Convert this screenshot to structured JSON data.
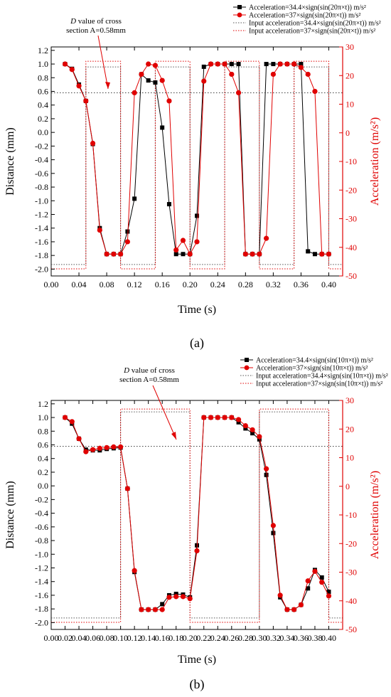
{
  "colors": {
    "black": "#000000",
    "red": "#e00000",
    "dotted": "#555555"
  },
  "chart_data": [
    {
      "type": "line",
      "panel_label": "(a)",
      "xlabel": "Time (s)",
      "ylabel": "Distance (mm)",
      "y2label": "Acceleration (m/s²)",
      "xlim": [
        0.0,
        0.42
      ],
      "ylim": [
        -2.1,
        1.25
      ],
      "y2lim": [
        -50,
        30
      ],
      "x_ticks": [
        "0.00",
        "0.04",
        "0.08",
        "0.12",
        "0.16",
        "0.20",
        "0.24",
        "0.28",
        "0.32",
        "0.36",
        "0.40"
      ],
      "x_tick_values": [
        0.0,
        0.04,
        0.08,
        0.12,
        0.16,
        0.2,
        0.24,
        0.28,
        0.32,
        0.36,
        0.4
      ],
      "y_ticks": [
        "1.2",
        "1.0",
        "0.8",
        "0.6",
        "0.4",
        "0.2",
        "0.0",
        "-0.2",
        "-0.4",
        "-0.6",
        "-0.8",
        "-1.0",
        "-1.2",
        "-1.4",
        "-1.6",
        "-1.8",
        "-2.0"
      ],
      "y_tick_values": [
        1.2,
        1.0,
        0.8,
        0.6,
        0.4,
        0.2,
        0.0,
        -0.2,
        -0.4,
        -0.6,
        -0.8,
        -1.0,
        -1.2,
        -1.4,
        -1.6,
        -1.8,
        -2.0
      ],
      "y2_ticks": [
        "30",
        "20",
        "10",
        "0",
        "-10",
        "-20",
        "-30",
        "-40",
        "-50"
      ],
      "y2_tick_values": [
        30,
        20,
        10,
        0,
        -10,
        -20,
        -30,
        -40,
        -50
      ],
      "legend": [
        {
          "label": "Acceleration=34.4×sign(sin(20π×t)) m/s²",
          "style": "square"
        },
        {
          "label": "Acceleration=37×sign(sin(20π×t)) m/s²",
          "style": "circle"
        },
        {
          "label": "Input acceleration=34.4×sign(sin(20π×t)) m/s²",
          "style": "dotted-dark"
        },
        {
          "label": "Input acceleration=37×sign(sin(20π×t)) m/s²",
          "style": "dotted-red"
        }
      ],
      "annotation": {
        "line1_italic": "D",
        "line1_rest": " value of cross",
        "line2": "section A=0.58mm"
      },
      "reference_value": 0.58,
      "series": [
        {
          "name": "Acceleration=34.4×sign(sin(20π×t)) m/s²",
          "marker": "square",
          "color": "#000000",
          "x": [
            0.02,
            0.03,
            0.04,
            0.05,
            0.06,
            0.07,
            0.08,
            0.09,
            0.1,
            0.11,
            0.12,
            0.13,
            0.14,
            0.15,
            0.16,
            0.17,
            0.18,
            0.19,
            0.2,
            0.21,
            0.22,
            0.23,
            0.24,
            0.25,
            0.26,
            0.27,
            0.28,
            0.29,
            0.3,
            0.31,
            0.32,
            0.33,
            0.34,
            0.35,
            0.36,
            0.37,
            0.38,
            0.39,
            0.4
          ],
          "y": [
            1.0,
            0.93,
            0.7,
            0.46,
            -0.17,
            -1.4,
            -1.78,
            -1.78,
            -1.78,
            -1.45,
            -0.97,
            0.85,
            0.76,
            0.73,
            0.07,
            -1.05,
            -1.78,
            -1.78,
            -1.78,
            -1.22,
            0.96,
            1.0,
            1.0,
            1.0,
            1.0,
            1.0,
            -1.78,
            -1.78,
            -1.78,
            1.0,
            1.0,
            1.0,
            1.0,
            1.0,
            1.0,
            -1.74,
            -1.78,
            -1.78,
            -1.78
          ]
        },
        {
          "name": "Acceleration=37×sign(sin(20π×t)) m/s²",
          "marker": "circle",
          "color": "#e00000",
          "x": [
            0.02,
            0.03,
            0.04,
            0.05,
            0.06,
            0.07,
            0.08,
            0.09,
            0.1,
            0.11,
            0.12,
            0.13,
            0.14,
            0.15,
            0.16,
            0.17,
            0.18,
            0.19,
            0.2,
            0.21,
            0.22,
            0.23,
            0.24,
            0.25,
            0.26,
            0.27,
            0.28,
            0.29,
            0.3,
            0.31,
            0.32,
            0.33,
            0.34,
            0.35,
            0.36,
            0.37,
            0.38,
            0.39,
            0.4
          ],
          "y": [
            1.0,
            0.92,
            0.68,
            0.46,
            -0.16,
            -1.43,
            -1.78,
            -1.78,
            -1.78,
            -1.6,
            0.58,
            0.85,
            1.0,
            0.98,
            0.76,
            0.46,
            -1.72,
            -1.58,
            -1.78,
            -1.6,
            0.75,
            1.0,
            1.0,
            1.0,
            0.85,
            0.58,
            -1.78,
            -1.78,
            -1.78,
            -1.55,
            0.85,
            1.0,
            1.0,
            1.0,
            0.95,
            0.85,
            0.6,
            -1.78,
            -1.78
          ]
        },
        {
          "name": "Input acceleration=34.4×sign(sin(20π×t)) m/s²",
          "type": "step",
          "color": "#555555",
          "x": [
            0.0,
            0.05,
            0.05,
            0.1,
            0.1,
            0.15,
            0.15,
            0.2,
            0.2,
            0.25,
            0.25,
            0.3,
            0.3,
            0.35,
            0.35,
            0.4,
            0.4,
            0.42
          ],
          "y2": [
            -46,
            -46,
            23,
            23,
            -46,
            -46,
            23,
            23,
            -46,
            -46,
            23,
            23,
            -46,
            -46,
            23,
            23,
            -46,
            -46
          ]
        },
        {
          "name": "Input acceleration=37×sign(sin(20π×t)) m/s²",
          "type": "step",
          "color": "#e00000",
          "x": [
            0.0,
            0.05,
            0.05,
            0.1,
            0.1,
            0.15,
            0.15,
            0.2,
            0.2,
            0.25,
            0.25,
            0.3,
            0.3,
            0.35,
            0.35,
            0.4,
            0.4,
            0.42
          ],
          "y2": [
            -47.5,
            -47.5,
            25,
            25,
            -47.5,
            -47.5,
            25,
            25,
            -47.5,
            -47.5,
            25,
            25,
            -47.5,
            -47.5,
            25,
            25,
            -47.5,
            -47.5
          ]
        }
      ]
    },
    {
      "type": "line",
      "panel_label": "(b)",
      "xlabel": "Time (s)",
      "ylabel": "Distance (mm)",
      "y2label": "Acceleration (m/s²)",
      "xlim": [
        0.0,
        0.42
      ],
      "ylim": [
        -2.1,
        1.25
      ],
      "y2lim": [
        -50,
        30
      ],
      "x_ticks": [
        "0.00",
        "0.02",
        "0.04",
        "0.06",
        "0.08",
        "0.10",
        "0.12",
        "0.14",
        "0.16",
        "0.18",
        "0.20",
        "0.22",
        "0.24",
        "0.26",
        "0.28",
        "0.30",
        "0.32",
        "0.34",
        "0.36",
        "0.38",
        "0.40"
      ],
      "x_tick_values": [
        0.0,
        0.02,
        0.04,
        0.06,
        0.08,
        0.1,
        0.12,
        0.14,
        0.16,
        0.18,
        0.2,
        0.22,
        0.24,
        0.26,
        0.28,
        0.3,
        0.32,
        0.34,
        0.36,
        0.38,
        0.4
      ],
      "y_ticks": [
        "1.2",
        "1.0",
        "0.8",
        "0.6",
        "0.4",
        "0.2",
        "0.0",
        "-0.2",
        "-0.4",
        "-0.6",
        "-0.8",
        "-1.0",
        "-1.2",
        "-1.4",
        "-1.6",
        "-1.8",
        "-2.0"
      ],
      "y_tick_values": [
        1.2,
        1.0,
        0.8,
        0.6,
        0.4,
        0.2,
        0.0,
        -0.2,
        -0.4,
        -0.6,
        -0.8,
        -1.0,
        -1.2,
        -1.4,
        -1.6,
        -1.8,
        -2.0
      ],
      "y2_ticks": [
        "30",
        "20",
        "10",
        "0",
        "-10",
        "-20",
        "-30",
        "-40",
        "-50"
      ],
      "y2_tick_values": [
        30,
        20,
        10,
        0,
        -10,
        -20,
        -30,
        -40,
        -50
      ],
      "legend": [
        {
          "label": "Acceleration=34.4×sign(sin(10π×t)) m/s²",
          "style": "square"
        },
        {
          "label": "Acceleration=37×sign(sin(10π×t)) m/s²",
          "style": "circle"
        },
        {
          "label": "Input acceleration=34.4×sign(sin(10π×t)) m/s²",
          "style": "dotted-dark"
        },
        {
          "label": "Input acceleration=37×sign(sin(10π×t)) m/s²",
          "style": "dotted-red"
        }
      ],
      "annotation": {
        "line1_italic": "D",
        "line1_rest": " value of cross",
        "line2": "section A=0.58mm"
      },
      "reference_value": 0.58,
      "series": [
        {
          "name": "Acceleration=34.4×sign(sin(10π×t)) m/s²",
          "marker": "square",
          "color": "#000000",
          "x": [
            0.02,
            0.03,
            0.04,
            0.05,
            0.06,
            0.07,
            0.08,
            0.09,
            0.1,
            0.11,
            0.12,
            0.13,
            0.14,
            0.15,
            0.16,
            0.17,
            0.18,
            0.19,
            0.2,
            0.21,
            0.22,
            0.23,
            0.24,
            0.25,
            0.26,
            0.27,
            0.28,
            0.29,
            0.3,
            0.31,
            0.32,
            0.33,
            0.34,
            0.35,
            0.36,
            0.37,
            0.38,
            0.39,
            0.4
          ],
          "y": [
            1.0,
            0.91,
            0.69,
            0.53,
            0.52,
            0.52,
            0.54,
            0.55,
            0.56,
            -0.04,
            -1.26,
            -1.81,
            -1.81,
            -1.81,
            -1.73,
            -1.6,
            -1.58,
            -1.59,
            -1.63,
            -0.87,
            1.0,
            1.0,
            1.0,
            1.0,
            1.0,
            0.93,
            0.84,
            0.77,
            0.68,
            0.16,
            -0.69,
            -1.63,
            -1.81,
            -1.81,
            -1.74,
            -1.5,
            -1.23,
            -1.34,
            -1.55
          ]
        },
        {
          "name": "Acceleration=37×sign(sin(10π×t)) m/s²",
          "marker": "circle",
          "color": "#e00000",
          "x": [
            0.02,
            0.03,
            0.04,
            0.05,
            0.06,
            0.07,
            0.08,
            0.09,
            0.1,
            0.11,
            0.12,
            0.13,
            0.14,
            0.15,
            0.16,
            0.17,
            0.18,
            0.19,
            0.2,
            0.21,
            0.22,
            0.23,
            0.24,
            0.25,
            0.26,
            0.27,
            0.28,
            0.29,
            0.3,
            0.31,
            0.32,
            0.33,
            0.34,
            0.35,
            0.36,
            0.37,
            0.38,
            0.39,
            0.4
          ],
          "y": [
            1.0,
            0.94,
            0.69,
            0.5,
            0.53,
            0.55,
            0.56,
            0.57,
            0.57,
            -0.04,
            -1.24,
            -1.81,
            -1.81,
            -1.81,
            -1.81,
            -1.63,
            -1.62,
            -1.62,
            -1.65,
            -0.95,
            1.0,
            1.0,
            1.0,
            1.0,
            1.0,
            0.97,
            0.88,
            0.82,
            0.72,
            0.25,
            -0.58,
            -1.6,
            -1.81,
            -1.81,
            -1.74,
            -1.39,
            -1.25,
            -1.41,
            -1.61
          ]
        },
        {
          "name": "Input acceleration=34.4×sign(sin(10π×t)) m/s²",
          "type": "step",
          "color": "#555555",
          "x": [
            0.0,
            0.1,
            0.1,
            0.2,
            0.2,
            0.3,
            0.3,
            0.4,
            0.4,
            0.42
          ],
          "y2": [
            -46,
            -46,
            26,
            26,
            -46,
            -46,
            26,
            26,
            -46,
            -46
          ]
        },
        {
          "name": "Input acceleration=37×sign(sin(10π×t)) m/s²",
          "type": "step",
          "color": "#e00000",
          "x": [
            0.0,
            0.1,
            0.1,
            0.2,
            0.2,
            0.3,
            0.3,
            0.4,
            0.4,
            0.42
          ],
          "y2": [
            -47.5,
            -47.5,
            27,
            27,
            -47.5,
            -47.5,
            27,
            27,
            -47.5,
            -47.5
          ]
        }
      ]
    }
  ]
}
